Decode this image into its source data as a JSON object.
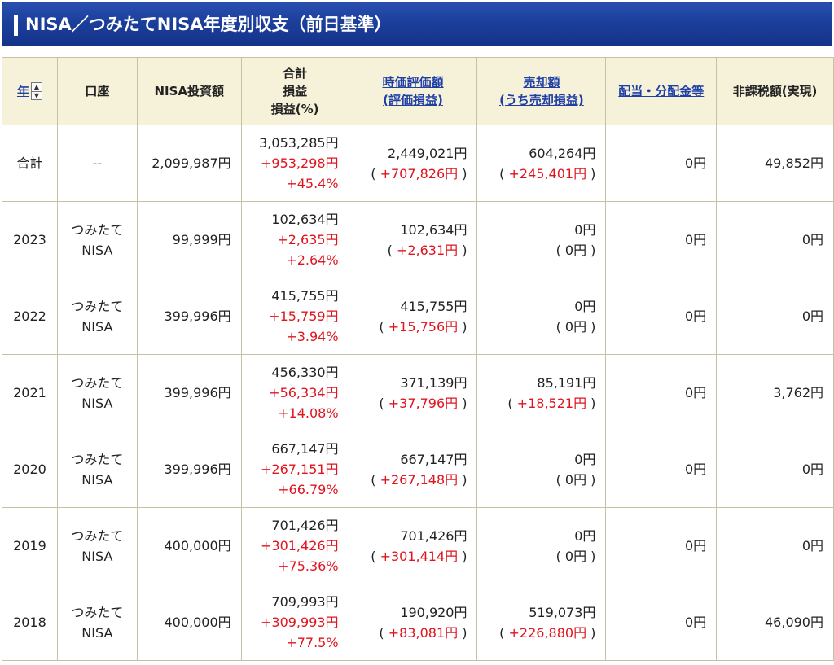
{
  "header": {
    "title": "NISA／つみたてNISA年度別収支（前日基準）"
  },
  "columns": {
    "year": "年",
    "account": "口座",
    "investment": "NISA投資額",
    "total_line1": "合計",
    "total_line2": "損益",
    "total_line3": "損益(%)",
    "market_line1": "時価評価額",
    "market_line2": "(評価損益)",
    "sale_line1": "売却額",
    "sale_line2": "(うち売却損益)",
    "dividend": "配当・分配金等",
    "taxfree": "非課税額(実現)"
  },
  "rows": [
    {
      "year": "合計",
      "account1": "--",
      "account2": "",
      "investment": "2,099,987円",
      "total": "3,053,285円",
      "profit": "+953,298円",
      "pct": "+45.4%",
      "market": "2,449,021円",
      "market_pl": "+707,826円",
      "sale": "604,264円",
      "sale_pl": "+245,401円",
      "dividend": "0円",
      "taxfree": "49,852円"
    },
    {
      "year": "2023",
      "account1": "つみたて",
      "account2": "NISA",
      "investment": "99,999円",
      "total": "102,634円",
      "profit": "+2,635円",
      "pct": "+2.64%",
      "market": "102,634円",
      "market_pl": "+2,631円",
      "sale": "0円",
      "sale_pl": "0円",
      "dividend": "0円",
      "taxfree": "0円"
    },
    {
      "year": "2022",
      "account1": "つみたて",
      "account2": "NISA",
      "investment": "399,996円",
      "total": "415,755円",
      "profit": "+15,759円",
      "pct": "+3.94%",
      "market": "415,755円",
      "market_pl": "+15,756円",
      "sale": "0円",
      "sale_pl": "0円",
      "dividend": "0円",
      "taxfree": "0円"
    },
    {
      "year": "2021",
      "account1": "つみたて",
      "account2": "NISA",
      "investment": "399,996円",
      "total": "456,330円",
      "profit": "+56,334円",
      "pct": "+14.08%",
      "market": "371,139円",
      "market_pl": "+37,796円",
      "sale": "85,191円",
      "sale_pl": "+18,521円",
      "dividend": "0円",
      "taxfree": "3,762円"
    },
    {
      "year": "2020",
      "account1": "つみたて",
      "account2": "NISA",
      "investment": "399,996円",
      "total": "667,147円",
      "profit": "+267,151円",
      "pct": "+66.79%",
      "market": "667,147円",
      "market_pl": "+267,148円",
      "sale": "0円",
      "sale_pl": "0円",
      "dividend": "0円",
      "taxfree": "0円"
    },
    {
      "year": "2019",
      "account1": "つみたて",
      "account2": "NISA",
      "investment": "400,000円",
      "total": "701,426円",
      "profit": "+301,426円",
      "pct": "+75.36%",
      "market": "701,426円",
      "market_pl": "+301,414円",
      "sale": "0円",
      "sale_pl": "0円",
      "dividend": "0円",
      "taxfree": "0円"
    },
    {
      "year": "2018",
      "account1": "つみたて",
      "account2": "NISA",
      "investment": "400,000円",
      "total": "709,993円",
      "profit": "+309,993円",
      "pct": "+77.5%",
      "market": "190,920円",
      "market_pl": "+83,081円",
      "sale": "519,073円",
      "sale_pl": "+226,880円",
      "dividend": "0円",
      "taxfree": "46,090円"
    }
  ],
  "colors": {
    "header_bg": "#1c3f9c",
    "th_bg": "#f6f1d9",
    "gain": "#e0141e",
    "link": "#1f3fa6"
  },
  "icons": {
    "sort": "sort-updown-icon"
  }
}
